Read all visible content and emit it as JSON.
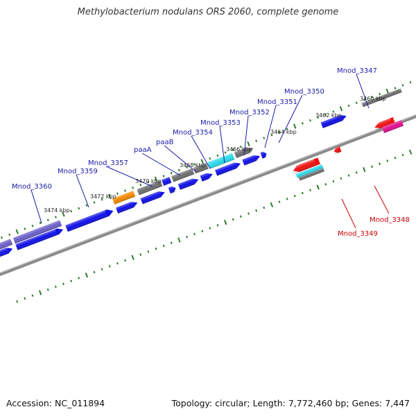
{
  "title": "Methylobacterium nodulans ORS 2060, complete genome",
  "footer": {
    "accession": "Accession: NC_011894",
    "stats": "Topology: circular; Length: 7,772,460 bp; Genes: 7,447"
  },
  "colors": {
    "backbone": "#888888",
    "tick": "#2a7a2a",
    "gene_label_forward": "#1a1aa6",
    "gene_label_reverse": "#cc0000",
    "scale_label": "#222222",
    "blue": "#1010e6",
    "purple": "#6a5fc8",
    "gray": "#6e6e6e",
    "cyan": "#2bd8e8",
    "orange": "#f08a00",
    "red": "#ee1111",
    "magenta": "#e01090"
  },
  "scale_labels": [
    "3474 kbp",
    "3472 kbp",
    "3470 kbp",
    "3468 kbp",
    "3466 kbp",
    "3464 kbp",
    "3462 kbp",
    "3460 kbp"
  ],
  "gene_labels_forward": [
    "Mnod_3360",
    "Mnod_3359",
    "Mnod_3357",
    "paaA",
    "paaB",
    "Mnod_3354",
    "Mnod_3353",
    "Mnod_3352",
    "Mnod_3351",
    "Mnod_3350",
    "Mnod_3347"
  ],
  "gene_labels_reverse": [
    "Mnod_3349",
    "Mnod_3348"
  ]
}
